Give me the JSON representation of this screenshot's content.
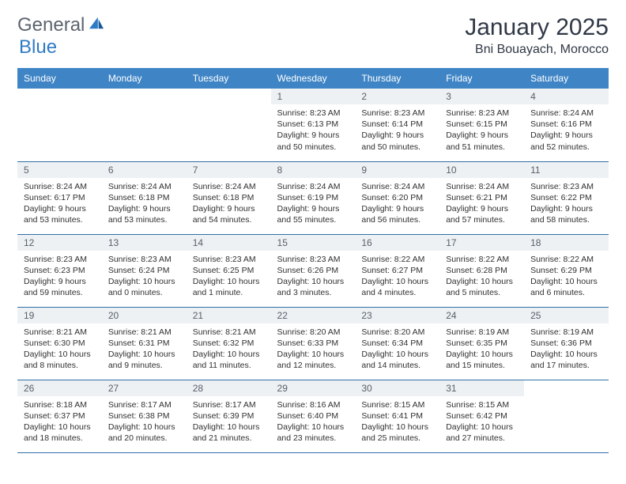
{
  "brand": {
    "word1": "General",
    "word2": "Blue"
  },
  "title": "January 2025",
  "location": "Bni Bouayach, Morocco",
  "colors": {
    "header_bg": "#3f85c6",
    "header_text": "#ffffff",
    "daynum_bg": "#eef1f3",
    "daynum_text": "#56606c",
    "row_border": "#2f6fa8",
    "body_text": "#303030",
    "title_text": "#303846",
    "logo_gray": "#5d6570",
    "logo_blue": "#2f7bc4"
  },
  "weekdays": [
    "Sunday",
    "Monday",
    "Tuesday",
    "Wednesday",
    "Thursday",
    "Friday",
    "Saturday"
  ],
  "weeks": [
    [
      {
        "n": "",
        "lines": []
      },
      {
        "n": "",
        "lines": []
      },
      {
        "n": "",
        "lines": []
      },
      {
        "n": "1",
        "lines": [
          "Sunrise: 8:23 AM",
          "Sunset: 6:13 PM",
          "Daylight: 9 hours",
          "and 50 minutes."
        ]
      },
      {
        "n": "2",
        "lines": [
          "Sunrise: 8:23 AM",
          "Sunset: 6:14 PM",
          "Daylight: 9 hours",
          "and 50 minutes."
        ]
      },
      {
        "n": "3",
        "lines": [
          "Sunrise: 8:23 AM",
          "Sunset: 6:15 PM",
          "Daylight: 9 hours",
          "and 51 minutes."
        ]
      },
      {
        "n": "4",
        "lines": [
          "Sunrise: 8:24 AM",
          "Sunset: 6:16 PM",
          "Daylight: 9 hours",
          "and 52 minutes."
        ]
      }
    ],
    [
      {
        "n": "5",
        "lines": [
          "Sunrise: 8:24 AM",
          "Sunset: 6:17 PM",
          "Daylight: 9 hours",
          "and 53 minutes."
        ]
      },
      {
        "n": "6",
        "lines": [
          "Sunrise: 8:24 AM",
          "Sunset: 6:18 PM",
          "Daylight: 9 hours",
          "and 53 minutes."
        ]
      },
      {
        "n": "7",
        "lines": [
          "Sunrise: 8:24 AM",
          "Sunset: 6:18 PM",
          "Daylight: 9 hours",
          "and 54 minutes."
        ]
      },
      {
        "n": "8",
        "lines": [
          "Sunrise: 8:24 AM",
          "Sunset: 6:19 PM",
          "Daylight: 9 hours",
          "and 55 minutes."
        ]
      },
      {
        "n": "9",
        "lines": [
          "Sunrise: 8:24 AM",
          "Sunset: 6:20 PM",
          "Daylight: 9 hours",
          "and 56 minutes."
        ]
      },
      {
        "n": "10",
        "lines": [
          "Sunrise: 8:24 AM",
          "Sunset: 6:21 PM",
          "Daylight: 9 hours",
          "and 57 minutes."
        ]
      },
      {
        "n": "11",
        "lines": [
          "Sunrise: 8:23 AM",
          "Sunset: 6:22 PM",
          "Daylight: 9 hours",
          "and 58 minutes."
        ]
      }
    ],
    [
      {
        "n": "12",
        "lines": [
          "Sunrise: 8:23 AM",
          "Sunset: 6:23 PM",
          "Daylight: 9 hours",
          "and 59 minutes."
        ]
      },
      {
        "n": "13",
        "lines": [
          "Sunrise: 8:23 AM",
          "Sunset: 6:24 PM",
          "Daylight: 10 hours",
          "and 0 minutes."
        ]
      },
      {
        "n": "14",
        "lines": [
          "Sunrise: 8:23 AM",
          "Sunset: 6:25 PM",
          "Daylight: 10 hours",
          "and 1 minute."
        ]
      },
      {
        "n": "15",
        "lines": [
          "Sunrise: 8:23 AM",
          "Sunset: 6:26 PM",
          "Daylight: 10 hours",
          "and 3 minutes."
        ]
      },
      {
        "n": "16",
        "lines": [
          "Sunrise: 8:22 AM",
          "Sunset: 6:27 PM",
          "Daylight: 10 hours",
          "and 4 minutes."
        ]
      },
      {
        "n": "17",
        "lines": [
          "Sunrise: 8:22 AM",
          "Sunset: 6:28 PM",
          "Daylight: 10 hours",
          "and 5 minutes."
        ]
      },
      {
        "n": "18",
        "lines": [
          "Sunrise: 8:22 AM",
          "Sunset: 6:29 PM",
          "Daylight: 10 hours",
          "and 6 minutes."
        ]
      }
    ],
    [
      {
        "n": "19",
        "lines": [
          "Sunrise: 8:21 AM",
          "Sunset: 6:30 PM",
          "Daylight: 10 hours",
          "and 8 minutes."
        ]
      },
      {
        "n": "20",
        "lines": [
          "Sunrise: 8:21 AM",
          "Sunset: 6:31 PM",
          "Daylight: 10 hours",
          "and 9 minutes."
        ]
      },
      {
        "n": "21",
        "lines": [
          "Sunrise: 8:21 AM",
          "Sunset: 6:32 PM",
          "Daylight: 10 hours",
          "and 11 minutes."
        ]
      },
      {
        "n": "22",
        "lines": [
          "Sunrise: 8:20 AM",
          "Sunset: 6:33 PM",
          "Daylight: 10 hours",
          "and 12 minutes."
        ]
      },
      {
        "n": "23",
        "lines": [
          "Sunrise: 8:20 AM",
          "Sunset: 6:34 PM",
          "Daylight: 10 hours",
          "and 14 minutes."
        ]
      },
      {
        "n": "24",
        "lines": [
          "Sunrise: 8:19 AM",
          "Sunset: 6:35 PM",
          "Daylight: 10 hours",
          "and 15 minutes."
        ]
      },
      {
        "n": "25",
        "lines": [
          "Sunrise: 8:19 AM",
          "Sunset: 6:36 PM",
          "Daylight: 10 hours",
          "and 17 minutes."
        ]
      }
    ],
    [
      {
        "n": "26",
        "lines": [
          "Sunrise: 8:18 AM",
          "Sunset: 6:37 PM",
          "Daylight: 10 hours",
          "and 18 minutes."
        ]
      },
      {
        "n": "27",
        "lines": [
          "Sunrise: 8:17 AM",
          "Sunset: 6:38 PM",
          "Daylight: 10 hours",
          "and 20 minutes."
        ]
      },
      {
        "n": "28",
        "lines": [
          "Sunrise: 8:17 AM",
          "Sunset: 6:39 PM",
          "Daylight: 10 hours",
          "and 21 minutes."
        ]
      },
      {
        "n": "29",
        "lines": [
          "Sunrise: 8:16 AM",
          "Sunset: 6:40 PM",
          "Daylight: 10 hours",
          "and 23 minutes."
        ]
      },
      {
        "n": "30",
        "lines": [
          "Sunrise: 8:15 AM",
          "Sunset: 6:41 PM",
          "Daylight: 10 hours",
          "and 25 minutes."
        ]
      },
      {
        "n": "31",
        "lines": [
          "Sunrise: 8:15 AM",
          "Sunset: 6:42 PM",
          "Daylight: 10 hours",
          "and 27 minutes."
        ]
      },
      {
        "n": "",
        "lines": []
      }
    ]
  ]
}
